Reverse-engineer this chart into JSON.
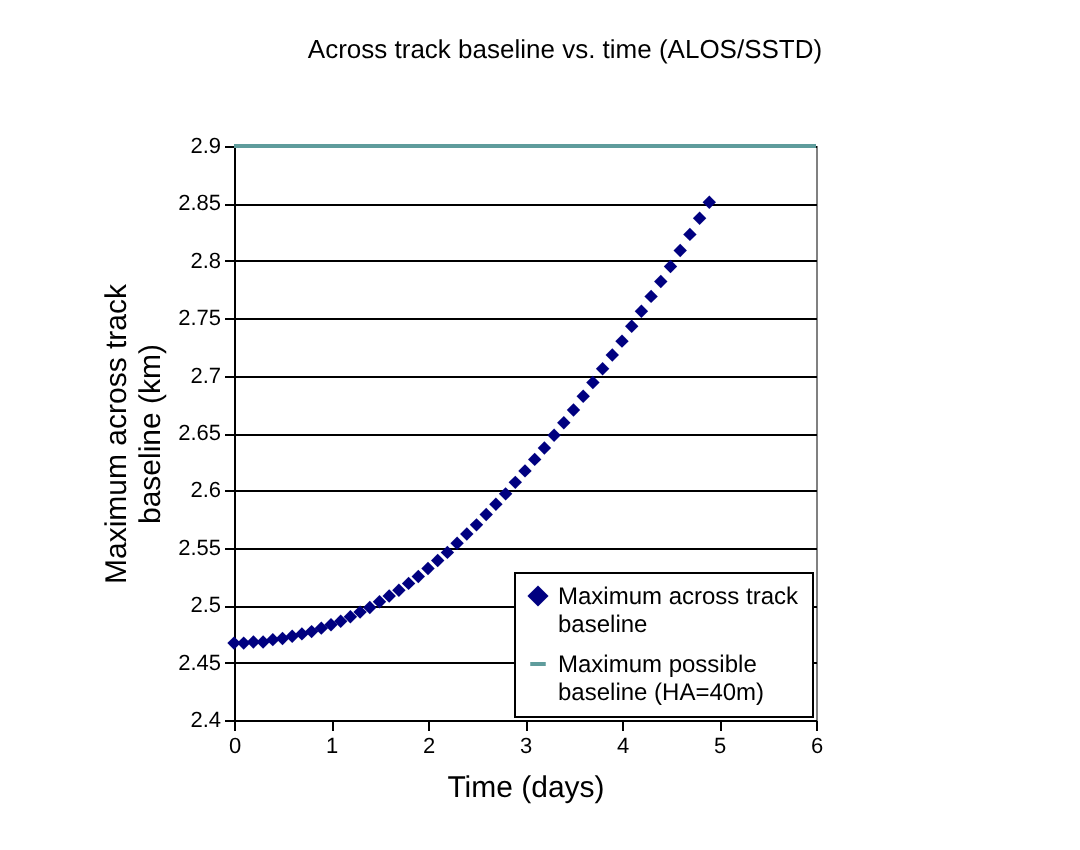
{
  "chart_data": {
    "type": "scatter",
    "title": "Across track baseline vs. time (ALOS/SSTD)",
    "xlabel": "Time (days)",
    "ylabel": "Maximum across track baseline (km)",
    "xlim": [
      0,
      6
    ],
    "xticks": [
      0,
      1,
      2,
      3,
      4,
      5,
      6
    ],
    "ylim": [
      2.4,
      2.9
    ],
    "yticks": [
      2.4,
      2.45,
      2.5,
      2.55,
      2.6,
      2.65,
      2.7,
      2.75,
      2.8,
      2.85,
      2.9
    ],
    "grid": "y",
    "legend": "bottom right",
    "series": [
      {
        "name": "Maximum across track baseline",
        "color": "#000080",
        "marker": "diamond",
        "x": [
          0,
          0.1,
          0.2,
          0.3,
          0.4,
          0.5,
          0.6,
          0.7,
          0.8,
          0.9,
          1,
          1.1,
          1.2,
          1.3,
          1.4,
          1.5,
          1.6,
          1.7,
          1.8,
          1.9,
          2,
          2.1,
          2.2,
          2.3,
          2.4,
          2.5,
          2.6,
          2.7,
          2.8,
          2.9,
          3,
          3.1,
          3.2,
          3.3,
          3.4,
          3.5,
          3.6,
          3.7,
          3.8,
          3.9,
          4,
          4.1,
          4.2,
          4.3,
          4.4,
          4.5,
          4.6,
          4.7,
          4.8,
          4.9
        ],
        "values": [
          2.467,
          2.467,
          2.468,
          2.468,
          2.47,
          2.471,
          2.473,
          2.475,
          2.477,
          2.48,
          2.483,
          2.486,
          2.49,
          2.494,
          2.498,
          2.503,
          2.508,
          2.513,
          2.519,
          2.525,
          2.532,
          2.539,
          2.546,
          2.554,
          2.562,
          2.57,
          2.579,
          2.588,
          2.597,
          2.607,
          2.617,
          2.627,
          2.637,
          2.648,
          2.659,
          2.67,
          2.682,
          2.694,
          2.706,
          2.718,
          2.73,
          2.743,
          2.756,
          2.769,
          2.782,
          2.795,
          2.809,
          2.823,
          2.837,
          2.851
        ]
      },
      {
        "name": "Maximum possible baseline (HA=40m)",
        "type": "line",
        "color": "#5f9c9c",
        "x": [
          0,
          6
        ],
        "values": [
          2.9,
          2.9
        ]
      }
    ]
  }
}
